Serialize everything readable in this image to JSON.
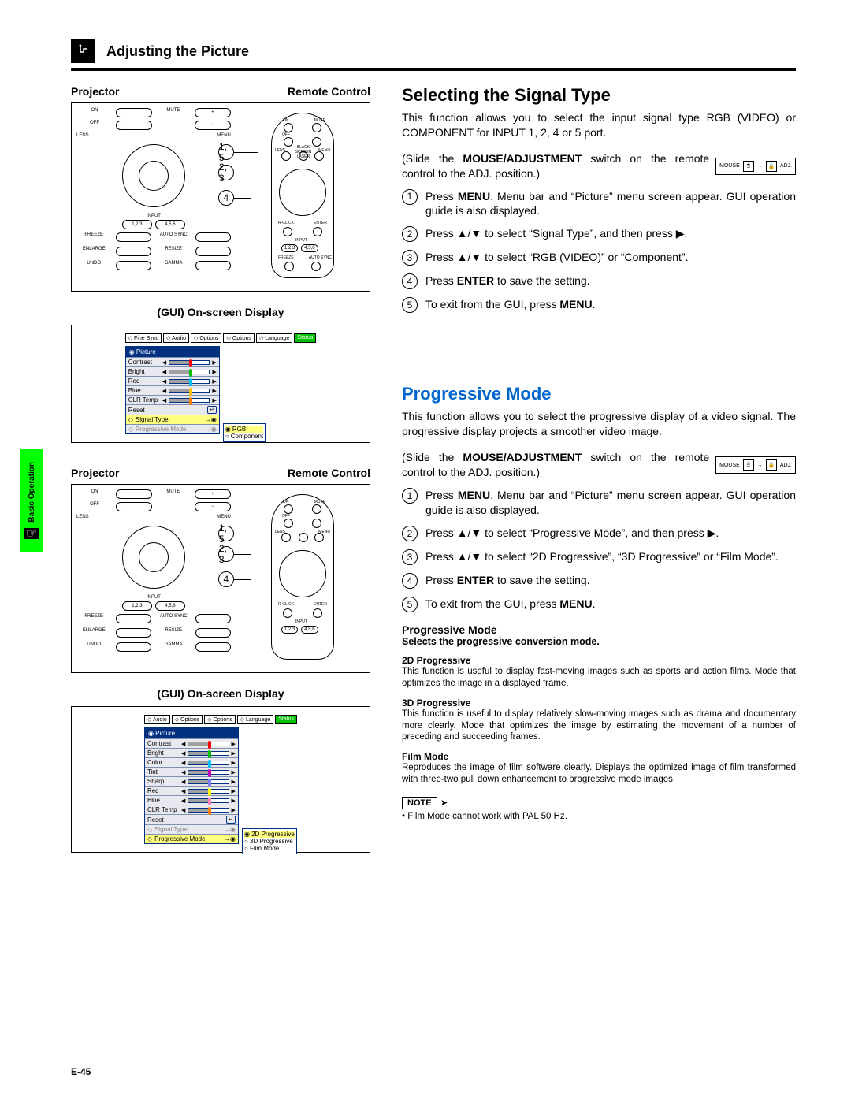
{
  "header": {
    "title": "Adjusting the Picture"
  },
  "side_tab": {
    "label": "Basic Operation"
  },
  "page_number": "E-45",
  "left": {
    "projector_label": "Projector",
    "remote_label": "Remote Control",
    "gui_label": "(GUI) On-screen Display",
    "gui1": {
      "tabs": [
        "Fine Sync",
        "Audio",
        "Options",
        "Options",
        "Language",
        "Status"
      ],
      "panel_title": "Picture",
      "rows": [
        {
          "label": "Contrast",
          "fill": 50,
          "knob": "#ff0000"
        },
        {
          "label": "Bright",
          "fill": 50,
          "knob": "#00c000"
        },
        {
          "label": "Red",
          "fill": 50,
          "knob": "#00c0ff"
        },
        {
          "label": "Blue",
          "fill": 50,
          "knob": "#ffc000"
        },
        {
          "label": "CLR Temp",
          "fill": 50,
          "knob": "#ff8000"
        }
      ],
      "reset": "Reset",
      "highlight": "Signal Type",
      "grey_row": "Progressive Mode",
      "popup": [
        "RGB",
        "Component"
      ]
    },
    "gui2": {
      "tabs": [
        "Audio",
        "Options",
        "Options",
        "Language",
        "Status"
      ],
      "panel_title": "Picture",
      "rows": [
        {
          "label": "Contrast",
          "fill": 50,
          "knob": "#ff0000"
        },
        {
          "label": "Bright",
          "fill": 50,
          "knob": "#00c000"
        },
        {
          "label": "Color",
          "fill": 50,
          "knob": "#00c0ff"
        },
        {
          "label": "Tint",
          "fill": 50,
          "knob": "#c000c0"
        },
        {
          "label": "Sharp",
          "fill": 50,
          "knob": "#8080ff"
        },
        {
          "label": "Red",
          "fill": 50,
          "knob": "#ffff00"
        },
        {
          "label": "Blue",
          "fill": 50,
          "knob": "#ff80c0"
        },
        {
          "label": "CLR Temp",
          "fill": 50,
          "knob": "#ff8000"
        }
      ],
      "reset": "Reset",
      "grey_row": "Signal Type",
      "highlight": "Progressive Mode",
      "popup": [
        "2D Progressive",
        "3D Progressive",
        "Film Mode"
      ]
    },
    "badges": [
      "1, 5",
      "2, 3",
      "4"
    ]
  },
  "right": {
    "section1": {
      "heading": "Selecting the Signal Type",
      "intro": "This function allows you to select the input signal type RGB (VIDEO) or COMPONENT for INPUT 1, 2, 4 or 5 port.",
      "slide_text_a": "(Slide the ",
      "slide_bold": "MOUSE/ADJUSTMENT",
      "slide_text_b": " switch on the remote control to the ADJ. position.)",
      "switch_labels": [
        "MOUSE",
        "ADJ."
      ],
      "steps": [
        "Press MENU. Menu bar and “Picture” menu screen appear. GUI operation guide is also displayed.",
        "Press ▲/▼ to select “Signal Type”, and then press ▶.",
        "Press ▲/▼ to select “RGB (VIDEO)” or “Component”.",
        "Press ENTER to save the setting.",
        "To exit from the GUI, press MENU."
      ],
      "bold_in_steps": {
        "0": "MENU",
        "3": "ENTER",
        "4": "MENU"
      }
    },
    "section2": {
      "heading": "Progressive Mode",
      "intro": "This function allows you to select the progressive display of a video signal. The progressive display projects a smoother video image.",
      "slide_text_a": "(Slide the ",
      "slide_bold": "MOUSE/ADJUSTMENT",
      "slide_text_b": " switch on the remote control to the ADJ. position.)",
      "switch_labels": [
        "MOUSE",
        "ADJ."
      ],
      "steps": [
        "Press MENU. Menu bar and “Picture” menu screen appear. GUI operation guide is also displayed.",
        "Press ▲/▼ to select “Progressive Mode”, and then press ▶.",
        "Press ▲/▼ to select “2D Progressive”, “3D Progressive” or “Film Mode”.",
        "Press ENTER to save the setting.",
        "To exit from the GUI, press MENU."
      ],
      "prog_heading": "Progressive Mode",
      "prog_sub": "Selects the progressive conversion mode.",
      "modes": [
        {
          "title": "2D Progressive",
          "body": "This function is useful to display fast-moving images such as sports and action films. Mode that optimizes the image in a displayed frame."
        },
        {
          "title": "3D Progressive",
          "body": "This function is useful to display relatively slow-moving images such as drama and documentary more clearly.\nMode that optimizes the image by estimating the movement of a number of preceding and succeeding frames."
        },
        {
          "title": "Film Mode",
          "body": "Reproduces the image of film software clearly. Displays the optimized image of film transformed with three-two pull down enhancement to progressive mode images."
        }
      ],
      "note_label": "NOTE",
      "note_text": "Film Mode cannot work with PAL 50 Hz."
    }
  }
}
